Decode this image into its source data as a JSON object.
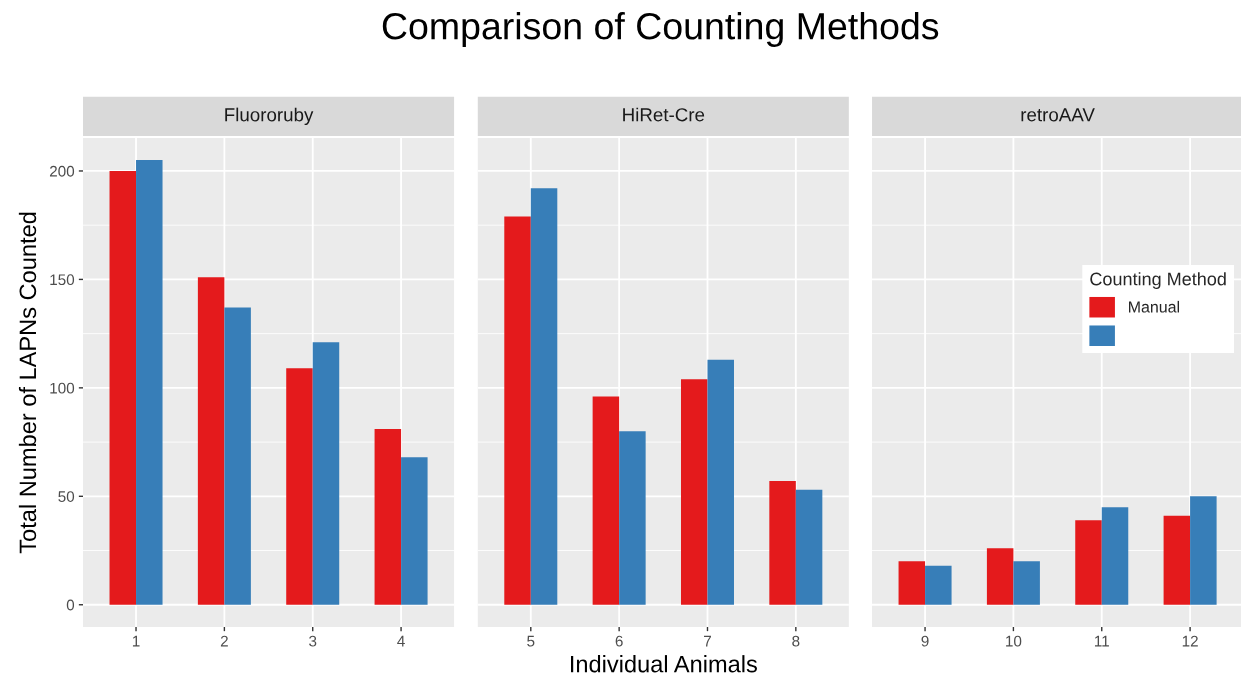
{
  "chart_data": [
    {
      "type": "bar",
      "title": "Fluororuby",
      "ylabel": "Total Number of LAPNs Counted",
      "annotations": [
        "Comparison of Counting Methods"
      ],
      "categories": [
        "1",
        "2",
        "3",
        "4"
      ],
      "ylim": [
        -10.25,
        215.25
      ],
      "yticks": [
        0,
        50,
        100,
        150,
        200
      ],
      "grid": true,
      "series": [
        {
          "color": "#e41a1c",
          "values": [
            200,
            151,
            109,
            81
          ]
        },
        {
          "color": "#377eb8",
          "values": [
            205,
            137,
            121,
            68
          ]
        }
      ]
    },
    {
      "type": "bar",
      "title": "HiRet-Cre",
      "xlabel": "Individual Animals",
      "categories": [
        "5",
        "6",
        "7",
        "8"
      ],
      "ylim": [
        -10.25,
        215.25
      ],
      "yticks": [
        0,
        50,
        100,
        150,
        200
      ],
      "grid": true,
      "tick_labels": "x",
      "series": [
        {
          "color": "#e41a1c",
          "values": [
            179,
            96,
            104,
            57
          ]
        },
        {
          "color": "#377eb8",
          "values": [
            192,
            80,
            113,
            53
          ]
        }
      ]
    },
    {
      "type": "bar",
      "title": "retroAAV",
      "legend_title": "Counting Method",
      "legend": "right",
      "categories": [
        "9",
        "10",
        "11",
        "12"
      ],
      "ylim": [
        -10.25,
        215.25
      ],
      "yticks": [
        0,
        50,
        100,
        150,
        200
      ],
      "grid": true,
      "tick_labels": "x",
      "series": [
        {
          "name": "Manual",
          "color": "#e41a1c",
          "values": [
            20,
            26,
            39,
            41
          ]
        },
        {
          "color": "#377eb8",
          "values": [
            18,
            20,
            45,
            50
          ]
        }
      ]
    }
  ]
}
